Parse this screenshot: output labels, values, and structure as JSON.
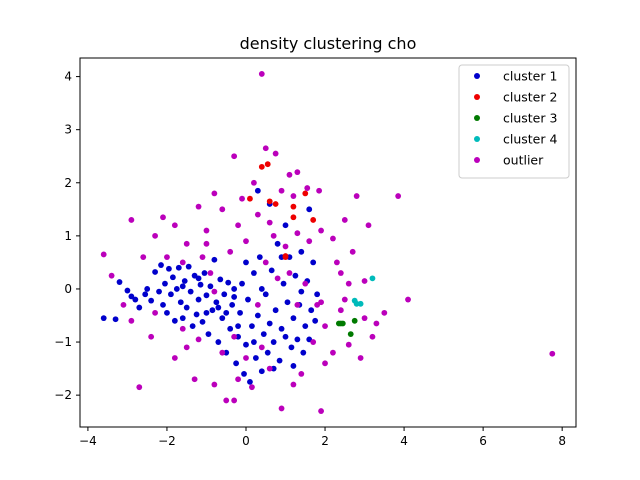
{
  "chart_data": {
    "type": "scatter",
    "title": "density clustering cho",
    "xlabel": "",
    "ylabel": "",
    "xlim": [
      -4.2,
      8.35
    ],
    "ylim": [
      -2.6,
      4.35
    ],
    "xticks": [
      -4,
      -2,
      0,
      2,
      4,
      6,
      8
    ],
    "yticks": [
      -2,
      -1,
      0,
      1,
      2,
      3,
      4
    ],
    "grid": false,
    "legend_position": "top-right",
    "series": [
      {
        "name": "cluster 1",
        "color": "#0000cc",
        "points": [
          [
            -3.6,
            -0.55
          ],
          [
            -3.3,
            -0.57
          ],
          [
            -3.2,
            0.13
          ],
          [
            -3.0,
            -0.03
          ],
          [
            -2.9,
            -0.14
          ],
          [
            -2.8,
            -0.2
          ],
          [
            -2.7,
            -0.35
          ],
          [
            -2.55,
            -0.1
          ],
          [
            -2.4,
            -0.22
          ],
          [
            -2.3,
            0.32
          ],
          [
            -2.2,
            -0.05
          ],
          [
            -2.15,
            0.45
          ],
          [
            -2.1,
            -0.3
          ],
          [
            -2.05,
            0.1
          ],
          [
            -2.0,
            -0.45
          ],
          [
            -1.95,
            0.38
          ],
          [
            -1.9,
            -0.1
          ],
          [
            -1.85,
            0.22
          ],
          [
            -1.8,
            -0.6
          ],
          [
            -1.75,
            0.0
          ],
          [
            -1.7,
            0.4
          ],
          [
            -1.65,
            -0.25
          ],
          [
            -1.6,
            -0.55
          ],
          [
            -1.55,
            0.15
          ],
          [
            -1.5,
            -0.35
          ],
          [
            -1.45,
            0.42
          ],
          [
            -1.4,
            -0.05
          ],
          [
            -1.35,
            -0.7
          ],
          [
            -1.3,
            0.25
          ],
          [
            -1.25,
            -0.48
          ],
          [
            -1.2,
            -0.2
          ],
          [
            -1.15,
            0.08
          ],
          [
            -1.1,
            -0.62
          ],
          [
            -1.05,
            0.3
          ],
          [
            -1.0,
            -0.12
          ],
          [
            -0.95,
            -0.85
          ],
          [
            -0.9,
            0.05
          ],
          [
            -0.85,
            -0.4
          ],
          [
            -0.8,
            0.55
          ],
          [
            -0.75,
            -0.25
          ],
          [
            -0.7,
            -1.0
          ],
          [
            -0.65,
            0.18
          ],
          [
            -0.6,
            -0.55
          ],
          [
            -0.55,
            -0.1
          ],
          [
            -0.5,
            -1.2
          ],
          [
            -0.45,
            0.12
          ],
          [
            -0.4,
            -0.75
          ],
          [
            -0.35,
            -0.3
          ],
          [
            -0.3,
            0.0
          ],
          [
            -0.25,
            -1.4
          ],
          [
            -0.2,
            -0.9
          ],
          [
            -0.15,
            -0.45
          ],
          [
            -0.1,
            0.1
          ],
          [
            -0.05,
            -1.6
          ],
          [
            0.0,
            -1.05
          ],
          [
            0.05,
            -0.2
          ],
          [
            0.1,
            -1.75
          ],
          [
            0.15,
            -0.7
          ],
          [
            0.2,
            0.3
          ],
          [
            0.25,
            -1.3
          ],
          [
            0.3,
            -0.5
          ],
          [
            0.35,
            0.6
          ],
          [
            0.4,
            -1.55
          ],
          [
            0.45,
            -0.85
          ],
          [
            0.5,
            -0.1
          ],
          [
            0.55,
            -1.2
          ],
          [
            0.6,
            -0.65
          ],
          [
            0.65,
            0.35
          ],
          [
            0.7,
            -1.0
          ],
          [
            0.75,
            -0.4
          ],
          [
            0.8,
            0.85
          ],
          [
            0.85,
            -1.35
          ],
          [
            0.9,
            -0.75
          ],
          [
            0.95,
            0.1
          ],
          [
            1.0,
            -0.9
          ],
          [
            1.05,
            -0.25
          ],
          [
            1.1,
            0.6
          ],
          [
            1.15,
            -1.1
          ],
          [
            1.2,
            -0.55
          ],
          [
            1.25,
            0.25
          ],
          [
            1.3,
            -0.95
          ],
          [
            1.35,
            -0.3
          ],
          [
            1.4,
            0.7
          ],
          [
            1.45,
            -1.2
          ],
          [
            1.5,
            -0.7
          ],
          [
            1.55,
            0.15
          ],
          [
            1.6,
            -0.95
          ],
          [
            1.65,
            -0.4
          ],
          [
            1.7,
            0.5
          ],
          [
            1.75,
            -0.6
          ],
          [
            1.8,
            -0.1
          ],
          [
            1.0,
            1.2
          ],
          [
            0.6,
            1.6
          ],
          [
            1.6,
            1.5
          ],
          [
            0.9,
            0.6
          ],
          [
            0.3,
            1.85
          ],
          [
            -0.3,
            -0.15
          ],
          [
            -0.7,
            -0.35
          ],
          [
            -1.2,
            0.2
          ],
          [
            -1.6,
            0.05
          ],
          [
            -2.5,
            0.0
          ],
          [
            0.0,
            0.5
          ],
          [
            0.4,
            0.0
          ],
          [
            -0.5,
            -0.45
          ],
          [
            0.7,
            -1.5
          ],
          [
            1.2,
            -1.45
          ],
          [
            0.2,
            -1.0
          ],
          [
            -0.2,
            -0.7
          ],
          [
            -1.0,
            -0.45
          ],
          [
            1.4,
            -0.05
          ]
        ]
      },
      {
        "name": "cluster 2",
        "color": "#ee0000",
        "points": [
          [
            0.4,
            2.3
          ],
          [
            0.55,
            2.35
          ],
          [
            0.6,
            1.65
          ],
          [
            0.75,
            1.6
          ],
          [
            0.1,
            1.7
          ],
          [
            1.2,
            1.55
          ],
          [
            1.2,
            1.35
          ],
          [
            1.5,
            1.8
          ],
          [
            1.7,
            1.3
          ],
          [
            1.0,
            0.6
          ],
          [
            1.0,
            0.62
          ]
        ]
      },
      {
        "name": "cluster 3",
        "color": "#007a00",
        "points": [
          [
            2.35,
            -0.65
          ],
          [
            2.4,
            -0.65
          ],
          [
            2.45,
            -0.65
          ],
          [
            2.65,
            -0.85
          ],
          [
            2.75,
            -0.6
          ]
        ]
      },
      {
        "name": "cluster 4",
        "color": "#00bbbb",
        "points": [
          [
            2.75,
            -0.22
          ],
          [
            2.8,
            -0.28
          ],
          [
            2.9,
            -0.28
          ],
          [
            3.2,
            0.2
          ]
        ]
      },
      {
        "name": "outlier",
        "color": "#bb00bb",
        "points": [
          [
            0.4,
            4.05
          ],
          [
            0.5,
            2.65
          ],
          [
            0.75,
            2.55
          ],
          [
            0.9,
            1.85
          ],
          [
            1.1,
            2.15
          ],
          [
            1.3,
            2.2
          ],
          [
            1.55,
            1.9
          ],
          [
            1.85,
            1.85
          ],
          [
            -0.3,
            2.5
          ],
          [
            -0.8,
            1.8
          ],
          [
            -1.0,
            1.1
          ],
          [
            -1.2,
            1.55
          ],
          [
            -2.1,
            1.35
          ],
          [
            -2.9,
            1.3
          ],
          [
            -3.6,
            0.65
          ],
          [
            -2.3,
            1.0
          ],
          [
            -1.8,
            1.2
          ],
          [
            -1.5,
            0.85
          ],
          [
            -1.1,
            0.6
          ],
          [
            -0.6,
            1.5
          ],
          [
            -0.2,
            1.2
          ],
          [
            0.3,
            1.4
          ],
          [
            0.7,
            1.0
          ],
          [
            1.0,
            0.8
          ],
          [
            1.3,
            1.05
          ],
          [
            1.6,
            0.9
          ],
          [
            1.9,
            1.1
          ],
          [
            2.2,
            0.95
          ],
          [
            2.5,
            1.3
          ],
          [
            2.8,
            1.75
          ],
          [
            3.1,
            1.2
          ],
          [
            3.85,
            1.75
          ],
          [
            4.1,
            -0.2
          ],
          [
            3.5,
            -0.45
          ],
          [
            3.3,
            -0.65
          ],
          [
            3.0,
            -0.55
          ],
          [
            2.9,
            -1.3
          ],
          [
            2.6,
            -1.05
          ],
          [
            2.2,
            -1.2
          ],
          [
            2.0,
            -0.7
          ],
          [
            1.8,
            -0.3
          ],
          [
            2.4,
            0.3
          ],
          [
            2.7,
            0.7
          ],
          [
            3.0,
            0.15
          ],
          [
            2.5,
            -0.2
          ],
          [
            -0.5,
            -2.1
          ],
          [
            -0.3,
            -2.1
          ],
          [
            0.15,
            -1.85
          ],
          [
            0.9,
            -2.25
          ],
          [
            1.9,
            -2.3
          ],
          [
            1.2,
            -1.8
          ],
          [
            0.6,
            -1.5
          ],
          [
            -0.8,
            -1.8
          ],
          [
            -1.3,
            -1.7
          ],
          [
            -2.7,
            -1.85
          ],
          [
            -2.4,
            -0.9
          ],
          [
            -2.9,
            -0.6
          ],
          [
            -3.1,
            -0.3
          ],
          [
            -3.4,
            0.25
          ],
          [
            -2.6,
            0.6
          ],
          [
            -1.6,
            0.5
          ],
          [
            -0.9,
            0.3
          ],
          [
            -0.4,
            0.7
          ],
          [
            0.0,
            0.9
          ],
          [
            0.5,
            0.5
          ],
          [
            1.1,
            0.3
          ],
          [
            1.5,
            0.1
          ],
          [
            1.9,
            -0.25
          ],
          [
            -0.1,
            1.7
          ],
          [
            0.2,
            2.0
          ],
          [
            -1.8,
            -1.3
          ],
          [
            -1.5,
            -1.1
          ],
          [
            -0.6,
            -1.2
          ],
          [
            0.0,
            -1.3
          ],
          [
            0.4,
            -1.1
          ],
          [
            1.4,
            -1.6
          ],
          [
            2.0,
            -1.4
          ],
          [
            3.2,
            -0.9
          ],
          [
            7.75,
            -1.22
          ],
          [
            -2.3,
            -0.45
          ],
          [
            -1.2,
            -0.95
          ],
          [
            -0.3,
            -0.9
          ],
          [
            0.8,
            0.2
          ],
          [
            1.3,
            -0.3
          ],
          [
            2.3,
            0.5
          ],
          [
            2.6,
            0.1
          ],
          [
            -2.0,
            0.6
          ],
          [
            -1.0,
            0.85
          ],
          [
            0.6,
            1.25
          ],
          [
            1.2,
            1.75
          ],
          [
            0.3,
            -0.3
          ],
          [
            -0.8,
            -0.05
          ],
          [
            -1.6,
            -0.75
          ],
          [
            -0.2,
            -1.7
          ],
          [
            1.7,
            -1.0
          ],
          [
            2.4,
            -0.4
          ]
        ]
      }
    ]
  }
}
